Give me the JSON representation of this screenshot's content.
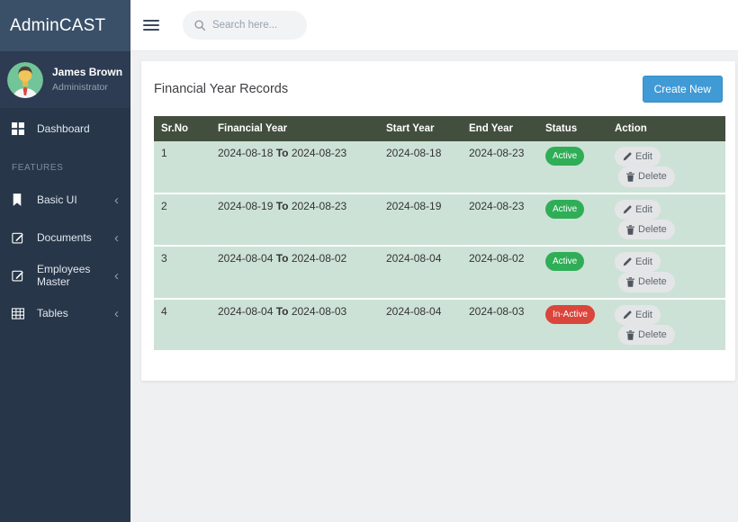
{
  "sidebar": {
    "brand": "AdminCAST",
    "user": {
      "name": "James Brown",
      "role": "Administrator",
      "avatar_icon": "person-avatar"
    },
    "features_label": "FEATURES",
    "items": [
      {
        "label": "Dashboard",
        "icon": "grid-icon",
        "chevron": false
      },
      {
        "label": "Basic UI",
        "icon": "bookmark-icon",
        "chevron": true
      },
      {
        "label": "Documents",
        "icon": "edit-square-icon",
        "chevron": true
      },
      {
        "label": "Employees Master",
        "icon": "edit-square-icon",
        "chevron": true
      },
      {
        "label": "Tables",
        "icon": "table-icon",
        "chevron": true
      }
    ]
  },
  "topbar": {
    "menu_icon": "hamburger-icon",
    "search_icon": "search-icon",
    "search_placeholder": "Search here...",
    "search_value": ""
  },
  "main": {
    "title": "Financial Year Records",
    "create_button_label": "Create New",
    "table": {
      "headers": [
        "Sr.No",
        "Financial Year",
        "Start Year",
        "End Year",
        "Status",
        "Action"
      ],
      "rows": [
        {
          "sr_no": "1",
          "financial_year": {
            "start": "2024-08-18",
            "separator": "To",
            "end": "2024-08-23"
          },
          "start_year": "2024-08-18",
          "end_year": "2024-08-23",
          "status": {
            "label": "Active",
            "type": "active"
          }
        },
        {
          "sr_no": "2",
          "financial_year": {
            "start": "2024-08-19",
            "separator": "To",
            "end": "2024-08-23"
          },
          "start_year": "2024-08-19",
          "end_year": "2024-08-23",
          "status": {
            "label": "Active",
            "type": "active"
          }
        },
        {
          "sr_no": "3",
          "financial_year": {
            "start": "2024-08-04",
            "separator": "To",
            "end": "2024-08-02"
          },
          "start_year": "2024-08-04",
          "end_year": "2024-08-02",
          "status": {
            "label": "Active",
            "type": "active"
          }
        },
        {
          "sr_no": "4",
          "financial_year": {
            "start": "2024-08-04",
            "separator": "To",
            "end": "2024-08-03"
          },
          "start_year": "2024-08-04",
          "end_year": "2024-08-03",
          "status": {
            "label": "In-Active",
            "type": "inactive"
          }
        }
      ],
      "action_buttons": {
        "edit_label": "Edit",
        "edit_icon": "pencil-icon",
        "delete_label": "Delete",
        "delete_icon": "trash-icon"
      }
    }
  },
  "colors": {
    "brand_bg": "#3a5068",
    "sidebar_bg": "#273749",
    "profile_bg": "#2d3c52",
    "content_bg": "#eef0f1",
    "table_header_bg": "#434f3e",
    "row_bg": "#cde2d6",
    "active_badge": "#2fae57",
    "inactive_badge": "#da453c",
    "create_button": "#409ad5"
  }
}
